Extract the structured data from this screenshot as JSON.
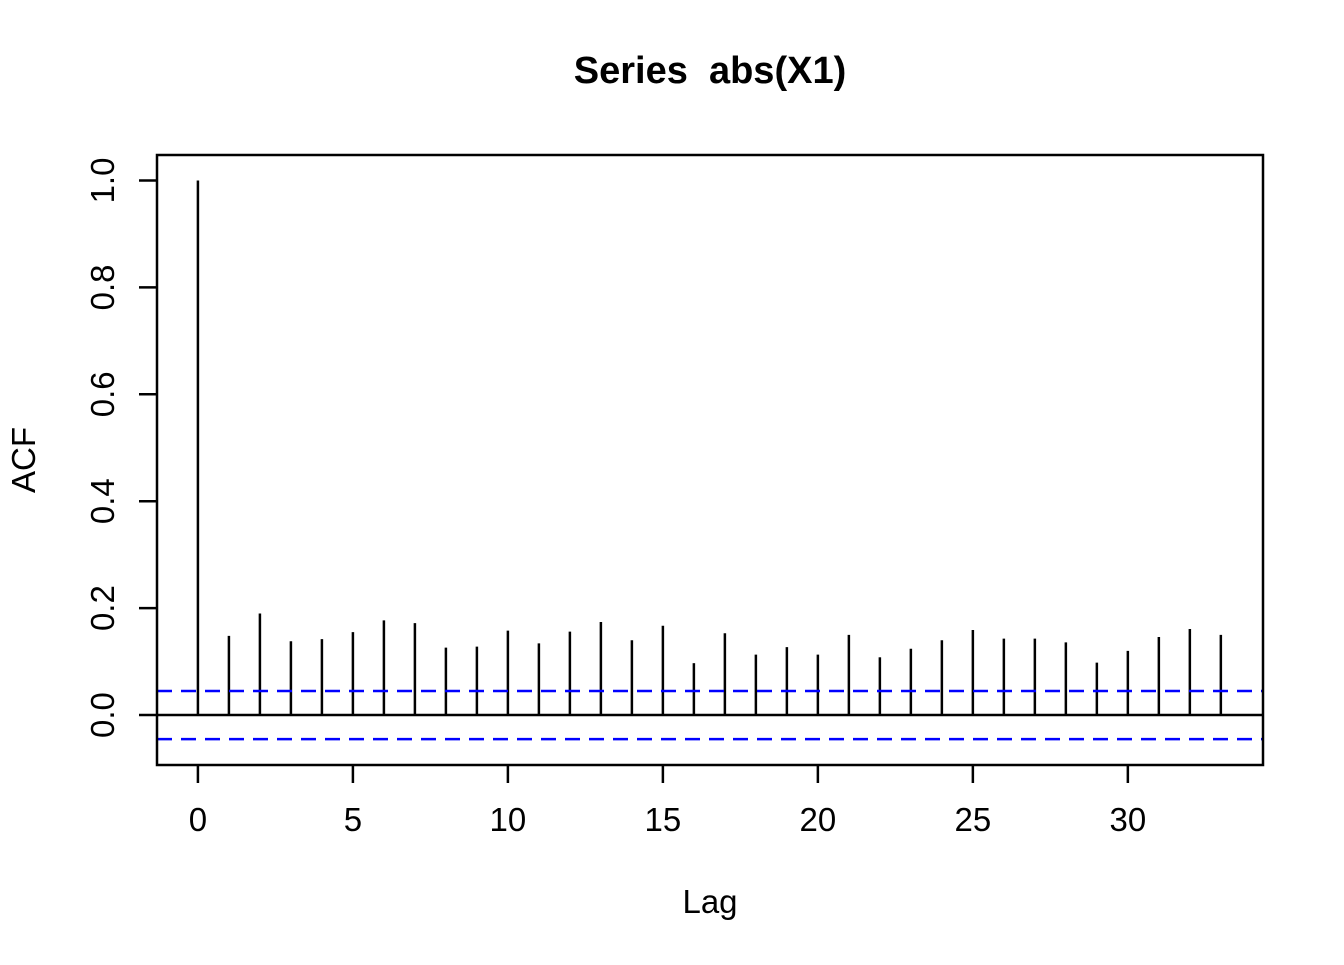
{
  "chart_data": {
    "type": "bar",
    "subtype": "acf-stick-plot",
    "title": "Series  abs(X1)",
    "xlabel": "Lag",
    "ylabel": "ACF",
    "x": [
      0,
      1,
      2,
      3,
      4,
      5,
      6,
      7,
      8,
      9,
      10,
      11,
      12,
      13,
      14,
      15,
      16,
      17,
      18,
      19,
      20,
      21,
      22,
      23,
      24,
      25,
      26,
      27,
      28,
      29,
      30,
      31,
      32,
      33
    ],
    "values": [
      1.0,
      0.148,
      0.19,
      0.138,
      0.142,
      0.155,
      0.177,
      0.172,
      0.126,
      0.128,
      0.158,
      0.134,
      0.156,
      0.174,
      0.14,
      0.167,
      0.097,
      0.153,
      0.113,
      0.127,
      0.113,
      0.15,
      0.108,
      0.124,
      0.14,
      0.159,
      0.143,
      0.143,
      0.136,
      0.098,
      0.12,
      0.146,
      0.161,
      0.15
    ],
    "confidence_level": 0.045,
    "confidence_bounds": [
      -0.045,
      0.045
    ],
    "zero_line": 0,
    "x_ticks": [
      0,
      5,
      10,
      15,
      20,
      25,
      30
    ],
    "y_ticks": [
      0.0,
      0.2,
      0.4,
      0.6,
      0.8,
      1.0
    ],
    "y_tick_labels": [
      "0.0",
      "0.2",
      "0.4",
      "0.6",
      "0.8",
      "1.0"
    ],
    "xlim": [
      -1.32,
      34.36
    ],
    "ylim": [
      -0.0935,
      1.0477
    ],
    "grid": false,
    "legend": null,
    "colors": {
      "spike": "#000000",
      "axis": "#000000",
      "confidence": "#0000ff",
      "background": "#ffffff"
    }
  }
}
